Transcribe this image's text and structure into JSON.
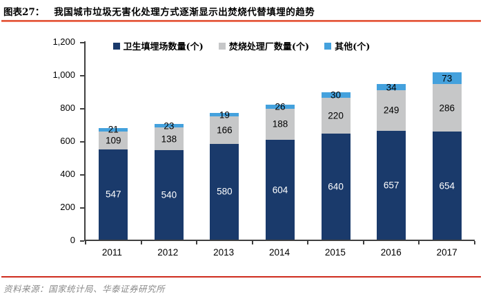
{
  "header": {
    "label": "图表27：",
    "title": "我国城市垃圾无害化处理方式逐渐显示出焚烧代替填埋的趋势"
  },
  "footer": {
    "source": "资料来源：国家统计局、华泰证券研究所"
  },
  "colors": {
    "landfill": "#1a3a6b",
    "incineration": "#c6c7c8",
    "other": "#44a1dd",
    "title_rule": "#e85a40",
    "footer_rule": "#ce2a1c",
    "axis": "#3f3f3f"
  },
  "chart_data": {
    "type": "bar",
    "stacked": true,
    "grid": false,
    "legend_position": "top",
    "categories": [
      "2011",
      "2012",
      "2013",
      "2014",
      "2015",
      "2016",
      "2017"
    ],
    "series": [
      {
        "name": "卫生填埋场数量(个)",
        "color_key": "landfill",
        "label_color": "#ffffff",
        "values": [
          547,
          540,
          580,
          604,
          640,
          657,
          654
        ]
      },
      {
        "name": "焚烧处理厂数量(个)",
        "color_key": "incineration",
        "label_color": "#000000",
        "values": [
          109,
          138,
          166,
          188,
          220,
          249,
          286
        ]
      },
      {
        "name": "其他(个)",
        "color_key": "other",
        "label_color": "#000000",
        "values": [
          21,
          23,
          19,
          26,
          30,
          34,
          73
        ]
      }
    ],
    "ylim": [
      0,
      1200
    ],
    "ytick_step": 200,
    "yticks": [
      "0",
      "200",
      "400",
      "600",
      "800",
      "1,000",
      "1,200"
    ],
    "xlabel": "",
    "ylabel": ""
  }
}
